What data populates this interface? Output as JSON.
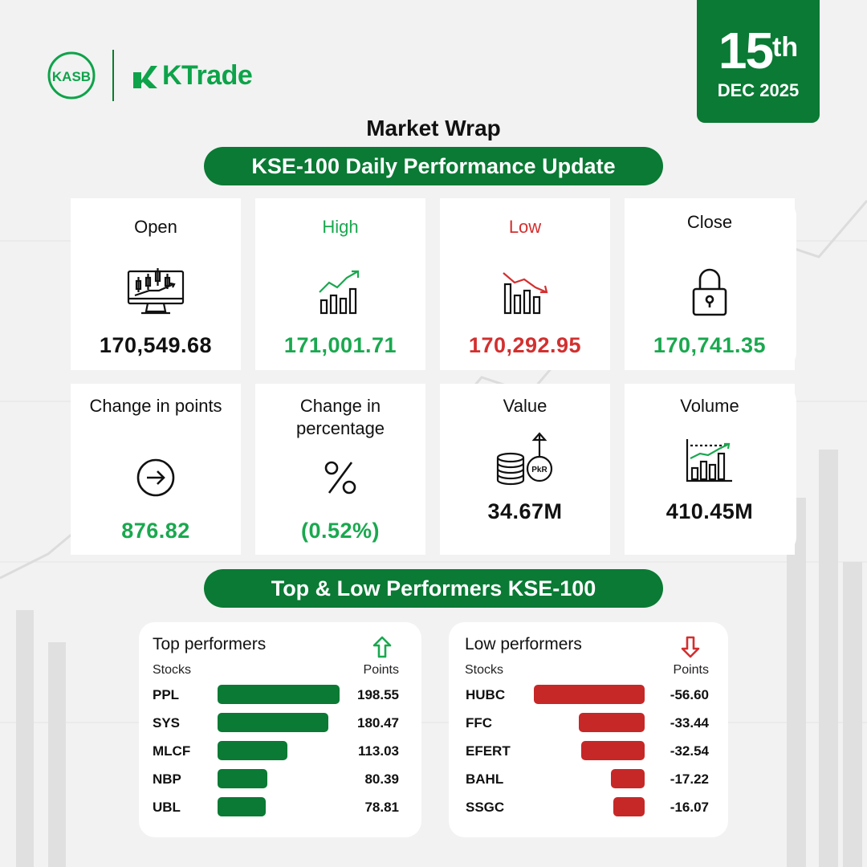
{
  "brand": {
    "kasb_logo": "KASB",
    "ktrade": "KTrade"
  },
  "date": {
    "day": "15",
    "suffix": "th",
    "month_year": "DEC 2025"
  },
  "title": "Market Wrap",
  "banner_daily": "KSE-100 Daily Performance Update",
  "banner_performers": "Top & Low Performers KSE-100",
  "stats": [
    {
      "label": "Open",
      "value": "170,549.68",
      "label_color": "#111111",
      "value_color": "#111111",
      "icon": "candlestick-monitor-icon"
    },
    {
      "label": "High",
      "value": "171,001.71",
      "label_color": "#1aa84f",
      "value_color": "#1aa84f",
      "icon": "trend-up-chart-icon"
    },
    {
      "label": "Low",
      "value": "170,292.95",
      "label_color": "#d32f2f",
      "value_color": "#d32f2f",
      "icon": "trend-down-chart-icon"
    },
    {
      "label": "Close",
      "value": "170,741.35",
      "label_color": "#111111",
      "value_color": "#1aa84f",
      "icon": "padlock-icon"
    },
    {
      "label": "Change in points",
      "value": "876.82",
      "label_color": "#111111",
      "value_color": "#1aa84f",
      "icon": "arrow-circle-icon"
    },
    {
      "label": "Change in percentage",
      "value": "(0.52%)",
      "label_color": "#111111",
      "value_color": "#1aa84f",
      "icon": "percent-icon"
    },
    {
      "label": "Value",
      "value": "34.67M",
      "label_color": "#111111",
      "value_color": "#111111",
      "icon": "coins-pkr-icon"
    },
    {
      "label": "Volume",
      "value": "410.45M",
      "label_color": "#111111",
      "value_color": "#111111",
      "icon": "volume-chart-icon"
    }
  ],
  "value_icon_text": "PkR",
  "top_performers": {
    "title": "Top performers",
    "col_stocks": "Stocks",
    "col_points": "Points",
    "rows": [
      {
        "stock": "PPL",
        "points": "198.55",
        "value": 198.55
      },
      {
        "stock": "SYS",
        "points": "180.47",
        "value": 180.47
      },
      {
        "stock": "MLCF",
        "points": "113.03",
        "value": 113.03
      },
      {
        "stock": "NBP",
        "points": "80.39",
        "value": 80.39
      },
      {
        "stock": "UBL",
        "points": "78.81",
        "value": 78.81
      }
    ]
  },
  "low_performers": {
    "title": "Low performers",
    "col_stocks": "Stocks",
    "col_points": "Points",
    "rows": [
      {
        "stock": "HUBC",
        "points": "-56.60",
        "value": -56.6
      },
      {
        "stock": "FFC",
        "points": "-33.44",
        "value": -33.44
      },
      {
        "stock": "EFERT",
        "points": "-32.54",
        "value": -32.54
      },
      {
        "stock": "BAHL",
        "points": "-17.22",
        "value": -17.22
      },
      {
        "stock": "SSGC",
        "points": "-16.07",
        "value": -16.07
      }
    ]
  },
  "colors": {
    "brand_green": "#0a7a34",
    "positive": "#1aa84f",
    "negative": "#d32f2f",
    "bar_red": "#c62828"
  }
}
